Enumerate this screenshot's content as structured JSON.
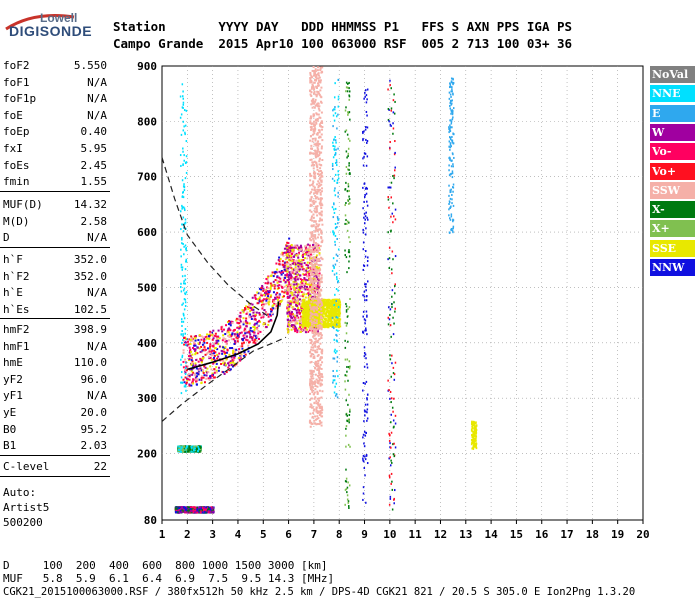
{
  "brand": {
    "line1": "Lowell",
    "line2": "DIGISONDE"
  },
  "header": {
    "row1": "Station       YYYY DAY   DDD HHMMSS P1   FFS S AXN PPS IGA PS",
    "row2": "Campo Grande  2015 Apr10 100 063000 RSF  005 2 713 100 03+ 36"
  },
  "params_group1": [
    {
      "label": "foF2",
      "value": "5.550"
    },
    {
      "label": "foF1",
      "value": "N/A"
    },
    {
      "label": "foF1p",
      "value": "N/A"
    },
    {
      "label": "foE",
      "value": "N/A"
    },
    {
      "label": "foEp",
      "value": "0.40"
    },
    {
      "label": "fxI",
      "value": "5.95"
    },
    {
      "label": "foEs",
      "value": "2.45"
    },
    {
      "label": "fmin",
      "value": "1.55"
    }
  ],
  "params_group2": [
    {
      "label": "MUF(D)",
      "value": "14.32"
    },
    {
      "label": "M(D)",
      "value": "2.58"
    },
    {
      "label": "D",
      "value": "N/A"
    }
  ],
  "params_group3": [
    {
      "label": "h`F",
      "value": "352.0"
    },
    {
      "label": "h`F2",
      "value": "352.0"
    },
    {
      "label": "h`E",
      "value": "N/A"
    },
    {
      "label": "h`Es",
      "value": "102.5"
    }
  ],
  "params_group4": [
    {
      "label": "hmF2",
      "value": "398.9"
    },
    {
      "label": "hmF1",
      "value": "N/A"
    },
    {
      "label": "hmE",
      "value": "110.0"
    },
    {
      "label": "yF2",
      "value": "96.0"
    },
    {
      "label": "yF1",
      "value": "N/A"
    },
    {
      "label": "yE",
      "value": "20.0"
    },
    {
      "label": "B0",
      "value": "95.2"
    },
    {
      "label": "B1",
      "value": "2.03"
    }
  ],
  "params_group5": [
    {
      "label": "C-level",
      "value": "22"
    }
  ],
  "autoscaling": {
    "line1": "Auto:",
    "line2": "Artist5",
    "line3": "500200"
  },
  "legend": [
    {
      "label": "NoVal",
      "color": "#808080"
    },
    {
      "label": "NNE",
      "color": "#00e0ff"
    },
    {
      "label": "E",
      "color": "#2fa8ee"
    },
    {
      "label": "W",
      "color": "#a000a0"
    },
    {
      "label": "Vo-",
      "color": "#ff0060"
    },
    {
      "label": "Vo+",
      "color": "#ff1020"
    },
    {
      "label": "SSW",
      "color": "#f5b0a8"
    },
    {
      "label": "X-",
      "color": "#007a10"
    },
    {
      "label": "X+",
      "color": "#80c050"
    },
    {
      "label": "SSE",
      "color": "#e8e800"
    },
    {
      "label": "NNW",
      "color": "#1010e0"
    }
  ],
  "distance_table": {
    "d_line": "D     100  200  400  600  800 1000 1500 3000 [km]",
    "muf_line": "MUF   5.8  5.9  6.1  6.4  6.9  7.5  9.5 14.3 [MHz]"
  },
  "footer": "CGK21_2015100063000.RSF / 380fx512h 50 kHz 2.5 km / DPS-4D CGK21 821 / 20.5 S 305.0 E Ion2Png 1.3.20",
  "chart_data": {
    "type": "scatter",
    "title": "",
    "xlabel": "",
    "ylabel": "",
    "xlim": [
      1,
      20
    ],
    "ylim": [
      80,
      900
    ],
    "x_ticks": [
      1,
      2,
      3,
      4,
      5,
      6,
      7,
      8,
      9,
      10,
      11,
      12,
      13,
      14,
      15,
      16,
      17,
      18,
      19,
      20
    ],
    "y_ticks": [
      80,
      200,
      300,
      400,
      500,
      600,
      700,
      800,
      900
    ],
    "profile_solid": [
      [
        2.0,
        352
      ],
      [
        3.0,
        365
      ],
      [
        4.0,
        380
      ],
      [
        4.8,
        398
      ],
      [
        5.3,
        420
      ],
      [
        5.55,
        450
      ],
      [
        5.6,
        475
      ]
    ],
    "profile_dashed_lower": [
      [
        1.0,
        258
      ],
      [
        1.8,
        290
      ],
      [
        2.8,
        325
      ],
      [
        3.8,
        358
      ],
      [
        4.6,
        385
      ],
      [
        5.4,
        400
      ],
      [
        5.9,
        410
      ]
    ],
    "profile_dashed_upper": [
      [
        1.0,
        735
      ],
      [
        1.5,
        660
      ],
      [
        2.0,
        595
      ],
      [
        2.8,
        545
      ],
      [
        3.6,
        505
      ],
      [
        4.5,
        470
      ],
      [
        5.2,
        448
      ]
    ],
    "trace_clusters": [
      {
        "name": "F2 trace",
        "x": [
          1.8,
          6.0
        ],
        "y": [
          350,
          560
        ],
        "colors": [
          "#ff0060",
          "#ff1020",
          "#a000a0",
          "#1010e0",
          "#e8e800",
          "#f5b0a8"
        ]
      },
      {
        "name": "F2 upper",
        "x": [
          5.9,
          7.2
        ],
        "y": [
          420,
          580
        ],
        "colors": [
          "#a000a0",
          "#ff0060",
          "#e8e800",
          "#f5b0a8"
        ]
      },
      {
        "name": "SSE patch",
        "x": [
          6.5,
          8.0
        ],
        "y": [
          430,
          480
        ],
        "colors": [
          "#e8e800"
        ]
      },
      {
        "name": "Es 2nd hop",
        "x": [
          1.6,
          2.5
        ],
        "y": [
          205,
          215
        ],
        "colors": [
          "#007a10",
          "#80c050",
          "#00e0ff"
        ]
      },
      {
        "name": "Es trace",
        "x": [
          1.5,
          3.0
        ],
        "y": [
          95,
          105
        ],
        "colors": [
          "#007a10",
          "#ff0060",
          "#a000a0",
          "#1010e0"
        ]
      },
      {
        "name": "NNE column 1.8",
        "x": [
          1.7,
          1.95
        ],
        "y": [
          300,
          880
        ],
        "colors": [
          "#00e0ff"
        ]
      },
      {
        "name": "NNE column 7.8",
        "x": [
          7.7,
          7.95
        ],
        "y": [
          300,
          880
        ],
        "colors": [
          "#00e0ff",
          "#2fa8ee"
        ]
      },
      {
        "name": "SSW column 7",
        "x": [
          6.8,
          7.3
        ],
        "y": [
          250,
          900
        ],
        "colors": [
          "#f5b0a8"
        ]
      },
      {
        "name": "X column 8.3",
        "x": [
          8.2,
          8.4
        ],
        "y": [
          100,
          880
        ],
        "colors": [
          "#007a10",
          "#80c050"
        ]
      },
      {
        "name": "NNW column 9",
        "x": [
          8.9,
          9.1
        ],
        "y": [
          100,
          860
        ],
        "colors": [
          "#1010e0"
        ]
      },
      {
        "name": "X column 10",
        "x": [
          9.9,
          10.2
        ],
        "y": [
          100,
          880
        ],
        "colors": [
          "#007a10",
          "#ff1020",
          "#1010e0"
        ]
      },
      {
        "name": "E column 12.4",
        "x": [
          12.3,
          12.5
        ],
        "y": [
          600,
          880
        ],
        "colors": [
          "#2fa8ee"
        ]
      },
      {
        "name": "SSE column 13.3",
        "x": [
          13.2,
          13.4
        ],
        "y": [
          210,
          260
        ],
        "colors": [
          "#e8e800"
        ]
      }
    ]
  }
}
